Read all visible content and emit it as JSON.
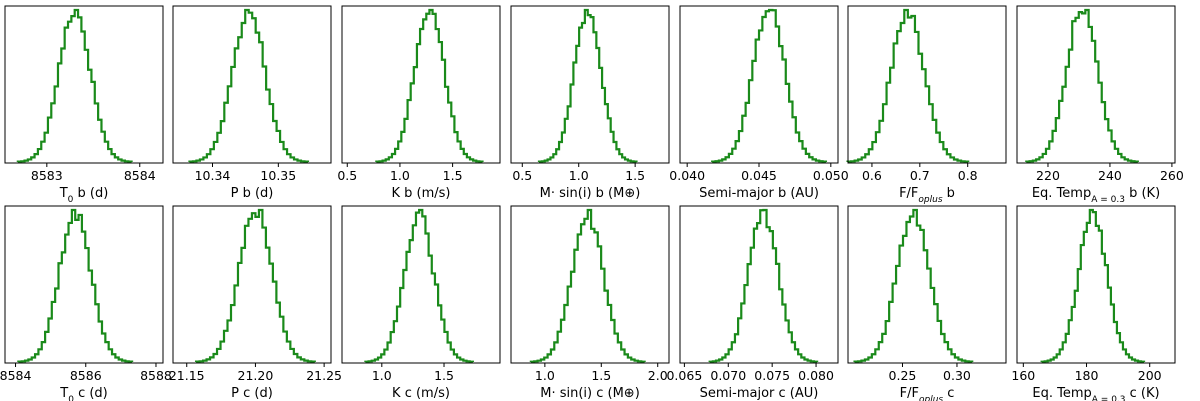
{
  "colors": {
    "histogram": "#1a8a1a",
    "frame": "#000000"
  },
  "chart_data": [
    {
      "type": "bar",
      "row": 0,
      "col": 0,
      "xlabel": "T",
      "xlabel_sub": "0",
      "xlabel_tail": " b (d)",
      "xlim": [
        8582.55,
        8584.25
      ],
      "ticks": [
        8583,
        8584
      ],
      "tick_labels": [
        "8583",
        "8584"
      ],
      "mu": 8583.3,
      "sigma": 0.17
    },
    {
      "type": "bar",
      "row": 0,
      "col": 1,
      "xlabel": "P b (d)",
      "xlim": [
        10.334,
        10.358
      ],
      "ticks": [
        10.34,
        10.35
      ],
      "tick_labels": [
        "10.34",
        "10.35"
      ],
      "mu": 10.3455,
      "sigma": 0.0025
    },
    {
      "type": "bar",
      "row": 0,
      "col": 2,
      "xlabel": "K b (m/s)",
      "xlim": [
        0.45,
        1.95
      ],
      "ticks": [
        0.5,
        1.0,
        1.5
      ],
      "tick_labels": [
        "0.5",
        "1.0",
        "1.5"
      ],
      "mu": 1.28,
      "sigma": 0.14
    },
    {
      "type": "bar",
      "row": 0,
      "col": 3,
      "xlabel": "M· sin(i) b (M⊕)",
      "xlim": [
        0.4,
        1.8
      ],
      "ticks": [
        0.5,
        1.0,
        1.5
      ],
      "tick_labels": [
        "0.5",
        "1.0",
        "1.5"
      ],
      "mu": 1.08,
      "sigma": 0.12
    },
    {
      "type": "bar",
      "row": 0,
      "col": 4,
      "xlabel": "Semi-major b (AU)",
      "xlim": [
        0.0395,
        0.0505
      ],
      "ticks": [
        0.04,
        0.045,
        0.05
      ],
      "tick_labels": [
        "0.040",
        "0.045",
        "0.050"
      ],
      "mu": 0.0457,
      "sigma": 0.0011
    },
    {
      "type": "bar",
      "row": 0,
      "col": 5,
      "xlabel": "F/F",
      "xlabel_sub": "oplus",
      "xlabel_tail": " b",
      "xlim": [
        0.55,
        0.88
      ],
      "ticks": [
        0.6,
        0.7,
        0.8
      ],
      "tick_labels": [
        "0.6",
        "0.7",
        "0.8"
      ],
      "mu": 0.675,
      "sigma": 0.035
    },
    {
      "type": "bar",
      "row": 0,
      "col": 6,
      "xlabel": "Eq. Temp",
      "xlabel_sub": "A = 0.3",
      "xlabel_tail": " b (K)",
      "xlim": [
        210,
        261
      ],
      "ticks": [
        220,
        240,
        260
      ],
      "tick_labels": [
        "220",
        "240",
        "260"
      ],
      "mu": 231,
      "sigma": 5
    },
    {
      "type": "bar",
      "row": 1,
      "col": 0,
      "xlabel": "T",
      "xlabel_sub": "0",
      "xlabel_tail": " c (d)",
      "xlim": [
        8583.7,
        8588.2
      ],
      "ticks": [
        8584,
        8586,
        8588
      ],
      "tick_labels": [
        "8584",
        "8586",
        "8588"
      ],
      "mu": 8585.7,
      "sigma": 0.45
    },
    {
      "type": "bar",
      "row": 1,
      "col": 1,
      "xlabel": "P c (d)",
      "xlim": [
        21.14,
        21.255
      ],
      "ticks": [
        21.15,
        21.2,
        21.25
      ],
      "tick_labels": [
        "21.15",
        "21.20",
        "21.25"
      ],
      "mu": 21.2,
      "sigma": 0.012
    },
    {
      "type": "bar",
      "row": 1,
      "col": 2,
      "xlabel": "K c (m/s)",
      "xlim": [
        0.68,
        1.95
      ],
      "ticks": [
        1.0,
        1.5
      ],
      "tick_labels": [
        "1.0",
        "1.5"
      ],
      "mu": 1.3,
      "sigma": 0.12
    },
    {
      "type": "bar",
      "row": 1,
      "col": 3,
      "xlabel": "M· sin(i) c (M⊕)",
      "xlim": [
        0.7,
        2.1
      ],
      "ticks": [
        1.0,
        1.5,
        2.0
      ],
      "tick_labels": [
        "1.0",
        "1.5",
        "2.0"
      ],
      "mu": 1.38,
      "sigma": 0.14
    },
    {
      "type": "bar",
      "row": 1,
      "col": 4,
      "xlabel": "Semi-major c (AU)",
      "xlim": [
        0.0645,
        0.0825
      ],
      "ticks": [
        0.065,
        0.07,
        0.075,
        0.08
      ],
      "tick_labels": [
        "0.065",
        "0.070",
        "0.075",
        "0.080"
      ],
      "mu": 0.074,
      "sigma": 0.0017
    },
    {
      "type": "bar",
      "row": 1,
      "col": 5,
      "xlabel": "F/F",
      "xlabel_sub": "oplus",
      "xlabel_tail": " c",
      "xlim": [
        0.2,
        0.345
      ],
      "ticks": [
        0.25,
        0.3
      ],
      "tick_labels": [
        "0.25",
        "0.30"
      ],
      "mu": 0.26,
      "sigma": 0.015
    },
    {
      "type": "bar",
      "row": 1,
      "col": 6,
      "xlabel": "Eq. Temp",
      "xlabel_sub": "A = 0.3",
      "xlabel_tail": " c (K)",
      "xlim": [
        158,
        208
      ],
      "ticks": [
        160,
        180,
        200
      ],
      "tick_labels": [
        "160",
        "180",
        "200"
      ],
      "mu": 182,
      "sigma": 4.5
    }
  ]
}
